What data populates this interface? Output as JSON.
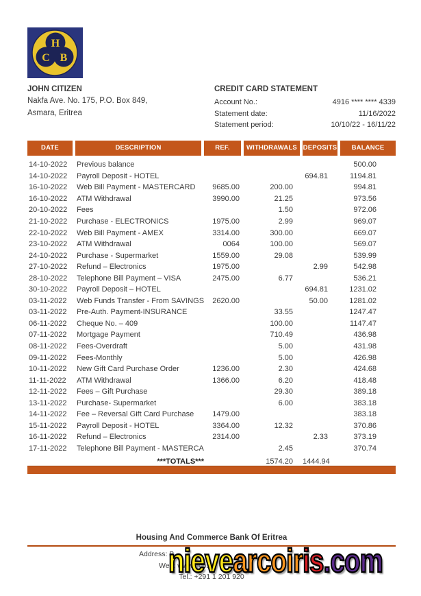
{
  "colors": {
    "accent": "#C4571B",
    "footer_rule": "#B34A0F"
  },
  "logo": {
    "letters": [
      "H",
      "C",
      "B"
    ],
    "background": "#2E3A87",
    "circle": "#E9C42D",
    "trefoil": "#1C2355"
  },
  "customer": {
    "name": "JOHN CITIZEN",
    "address_line1": "Nakfa Ave. No. 175, P.O. Box 849,",
    "address_line2": "Asmara, Eritrea"
  },
  "statement": {
    "title": "CREDIT CARD STATEMENT",
    "fields": [
      {
        "label": "Account No.:",
        "value": "4916 **** **** 4339"
      },
      {
        "label": "Statement date:",
        "value": "11/16/2022"
      },
      {
        "label": "Statement period:",
        "value": "10/10/22 - 16/11/22"
      }
    ]
  },
  "table": {
    "headers": [
      "DATE",
      "DESCRIPTION",
      "REF.",
      "WITHDRAWALS",
      "DEPOSITS",
      "BALANCE"
    ],
    "rows": [
      [
        "14-10-2022",
        "Previous balance",
        "",
        "",
        "",
        "500.00"
      ],
      [
        "14-10-2022",
        "Payroll Deposit - HOTEL",
        "",
        "",
        "694.81",
        "1194.81"
      ],
      [
        "16-10-2022",
        "Web Bill Payment  - MASTERCARD",
        "9685.00",
        "200.00",
        "",
        "994.81"
      ],
      [
        "16-10-2022",
        "ATM Withdrawal",
        "3990.00",
        "21.25",
        "",
        "973.56"
      ],
      [
        "20-10-2022",
        "Fees",
        "",
        "1.50",
        "",
        "972.06"
      ],
      [
        "21-10-2022",
        "Purchase  - ELECTRONICS",
        "1975.00",
        "2.99",
        "",
        "969.07"
      ],
      [
        "22-10-2022",
        "Web Bill Payment - AMEX",
        "3314.00",
        "300.00",
        "",
        "669.07"
      ],
      [
        "23-10-2022",
        "ATM Withdrawal",
        "0064",
        "100.00",
        "",
        "569.07"
      ],
      [
        "24-10-2022",
        "Purchase - Supermarket",
        "1559.00",
        "29.08",
        "",
        "539.99"
      ],
      [
        "27-10-2022",
        "Refund – Electronics",
        "1975.00",
        "",
        "2.99",
        "542.98"
      ],
      [
        "28-10-2022",
        "Telephone Bill Payment – VISA",
        "2475.00",
        "6.77",
        "",
        "536.21"
      ],
      [
        "30-10-2022",
        "Payroll Deposit – HOTEL",
        "",
        "",
        "694.81",
        "1231.02"
      ],
      [
        "03-11-2022",
        "Web Funds Transfer - From SAVINGS",
        "2620.00",
        "",
        "50.00",
        "1281.02"
      ],
      [
        "03-11-2022",
        "Pre-Auth. Payment-INSURANCE",
        "",
        "33.55",
        "",
        "1247.47"
      ],
      [
        "06-11-2022",
        "Cheque No. – 409",
        "",
        "100.00",
        "",
        "1147.47"
      ],
      [
        "07-11-2022",
        "Mortgage Payment",
        "",
        "710.49",
        "",
        "436.98"
      ],
      [
        "08-11-2022",
        "Fees-Overdraft",
        "",
        "5.00",
        "",
        "431.98"
      ],
      [
        "09-11-2022",
        "Fees-Monthly",
        "",
        "5.00",
        "",
        "426.98"
      ],
      [
        "10-11-2022",
        "New Gift Card Purchase Order",
        "1236.00",
        "2.30",
        "",
        "424.68"
      ],
      [
        "11-11-2022",
        "ATM Withdrawal",
        "1366.00",
        "6.20",
        "",
        "418.48"
      ],
      [
        "12-11-2022",
        "Fees – Gift Purchase",
        "",
        "29.30",
        "",
        "389.18"
      ],
      [
        "13-11-2022",
        "Purchase- Supermarket",
        "",
        "6.00",
        "",
        "383.18"
      ],
      [
        "14-11-2022",
        "Fee – Reversal Gift Card Purchase",
        "1479.00",
        "",
        "",
        "383.18"
      ],
      [
        "15-11-2022",
        "Payroll Deposit - HOTEL",
        "3364.00",
        "12.32",
        "",
        "370.86"
      ],
      [
        "16-11-2022",
        "Refund – Electronics",
        "2314.00",
        "",
        "2.33",
        "373.19"
      ],
      [
        "17-11-2022",
        "Telephone Bill Payment - MASTERCARD",
        "",
        "2.45",
        "",
        "370.74"
      ]
    ],
    "totals": {
      "label": "***TOTALS***",
      "withdrawals": "1574.20",
      "deposits": "1444.94"
    }
  },
  "footer": {
    "bank_name": "Housing And Commerce Bank Of Eritrea",
    "address_line": "Address: B",
    "web_line": "Web: www.hcb.co",
    "tel_line": "Tel.: +291 1 201 920"
  },
  "watermark": {
    "segments": [
      {
        "text": "nieve",
        "color": "#FFE81A"
      },
      {
        "text": "arcoir",
        "color": "#F7941E"
      },
      {
        "text": "is",
        "color": "#D91F26"
      },
      {
        "text": ".com",
        "color": "#5B2A8C"
      }
    ]
  }
}
